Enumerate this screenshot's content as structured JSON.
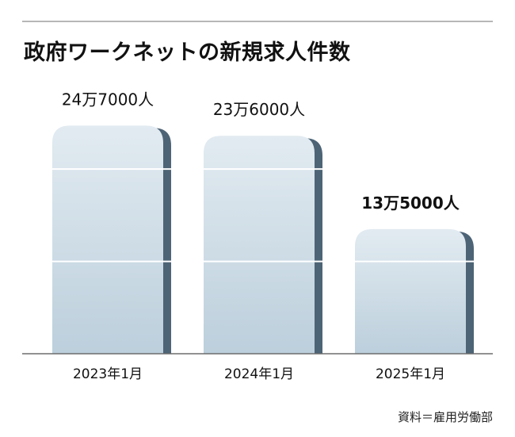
{
  "title": "政府ワークネットの新規求人件数",
  "source": "資料＝雇用労働部",
  "colors": {
    "bar_top": "#e2ebf1",
    "bar_bottom": "#bccfdc",
    "bar_shadow": "#4d6476",
    "gridline": "#ffffff",
    "baseline": "#6d6d6d",
    "text": "#111111"
  },
  "chart_data": {
    "type": "bar",
    "title": "政府ワークネットの新規求人件数",
    "categories": [
      "2023年1月",
      "2024年1月",
      "2025年1月"
    ],
    "values": [
      247000,
      236000,
      135000
    ],
    "data_labels": [
      "24万7000人",
      "23万6000人",
      "13万5000人"
    ],
    "highlight_index": 2,
    "unit": "人",
    "ylim": [
      0,
      280000
    ],
    "grid": true,
    "gridlines": [
      100000,
      200000
    ],
    "xlabel": "",
    "ylabel": ""
  }
}
